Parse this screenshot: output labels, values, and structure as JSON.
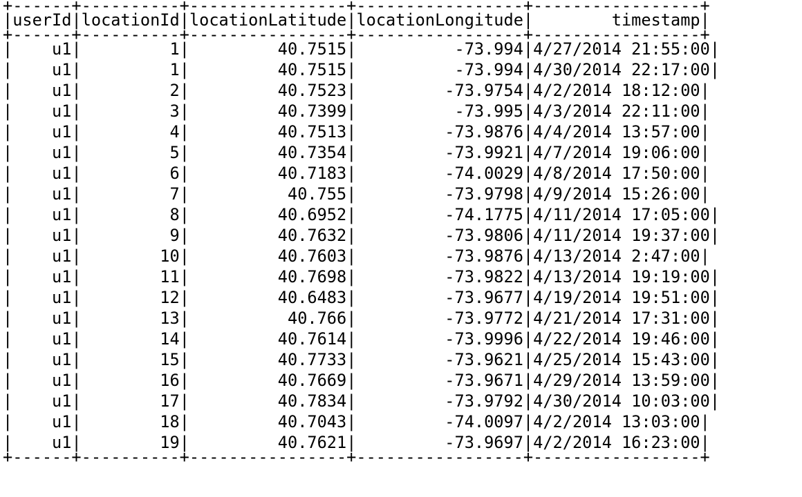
{
  "table": {
    "columns": [
      {
        "name": "userId",
        "width": 6
      },
      {
        "name": "locationId",
        "width": 10
      },
      {
        "name": "locationLatitude",
        "width": 16
      },
      {
        "name": "locationLongitude",
        "width": 17
      },
      {
        "name": "timestamp",
        "width": 17
      }
    ],
    "rows": [
      [
        "u1",
        "1",
        "40.7515",
        "-73.994",
        "4/27/2014 21:55:00"
      ],
      [
        "u1",
        "1",
        "40.7515",
        "-73.994",
        "4/30/2014 22:17:00"
      ],
      [
        "u1",
        "2",
        "40.7523",
        "-73.9754",
        "4/2/2014 18:12:00"
      ],
      [
        "u1",
        "3",
        "40.7399",
        "-73.995",
        "4/3/2014 22:11:00"
      ],
      [
        "u1",
        "4",
        "40.7513",
        "-73.9876",
        "4/4/2014 13:57:00"
      ],
      [
        "u1",
        "5",
        "40.7354",
        "-73.9921",
        "4/7/2014 19:06:00"
      ],
      [
        "u1",
        "6",
        "40.7183",
        "-74.0029",
        "4/8/2014 17:50:00"
      ],
      [
        "u1",
        "7",
        "40.755",
        "-73.9798",
        "4/9/2014 15:26:00"
      ],
      [
        "u1",
        "8",
        "40.6952",
        "-74.1775",
        "4/11/2014 17:05:00"
      ],
      [
        "u1",
        "9",
        "40.7632",
        "-73.9806",
        "4/11/2014 19:37:00"
      ],
      [
        "u1",
        "10",
        "40.7603",
        "-73.9876",
        "4/13/2014 2:47:00"
      ],
      [
        "u1",
        "11",
        "40.7698",
        "-73.9822",
        "4/13/2014 19:19:00"
      ],
      [
        "u1",
        "12",
        "40.6483",
        "-73.9677",
        "4/19/2014 19:51:00"
      ],
      [
        "u1",
        "13",
        "40.766",
        "-73.9772",
        "4/21/2014 17:31:00"
      ],
      [
        "u1",
        "14",
        "40.7614",
        "-73.9996",
        "4/22/2014 19:46:00"
      ],
      [
        "u1",
        "15",
        "40.7733",
        "-73.9621",
        "4/25/2014 15:43:00"
      ],
      [
        "u1",
        "16",
        "40.7669",
        "-73.9671",
        "4/29/2014 13:59:00"
      ],
      [
        "u1",
        "17",
        "40.7834",
        "-73.9792",
        "4/30/2014 10:03:00"
      ],
      [
        "u1",
        "18",
        "40.7043",
        "-74.0097",
        "4/2/2014 13:03:00"
      ],
      [
        "u1",
        "19",
        "40.7621",
        "-73.9697",
        "4/2/2014 16:23:00"
      ]
    ]
  }
}
